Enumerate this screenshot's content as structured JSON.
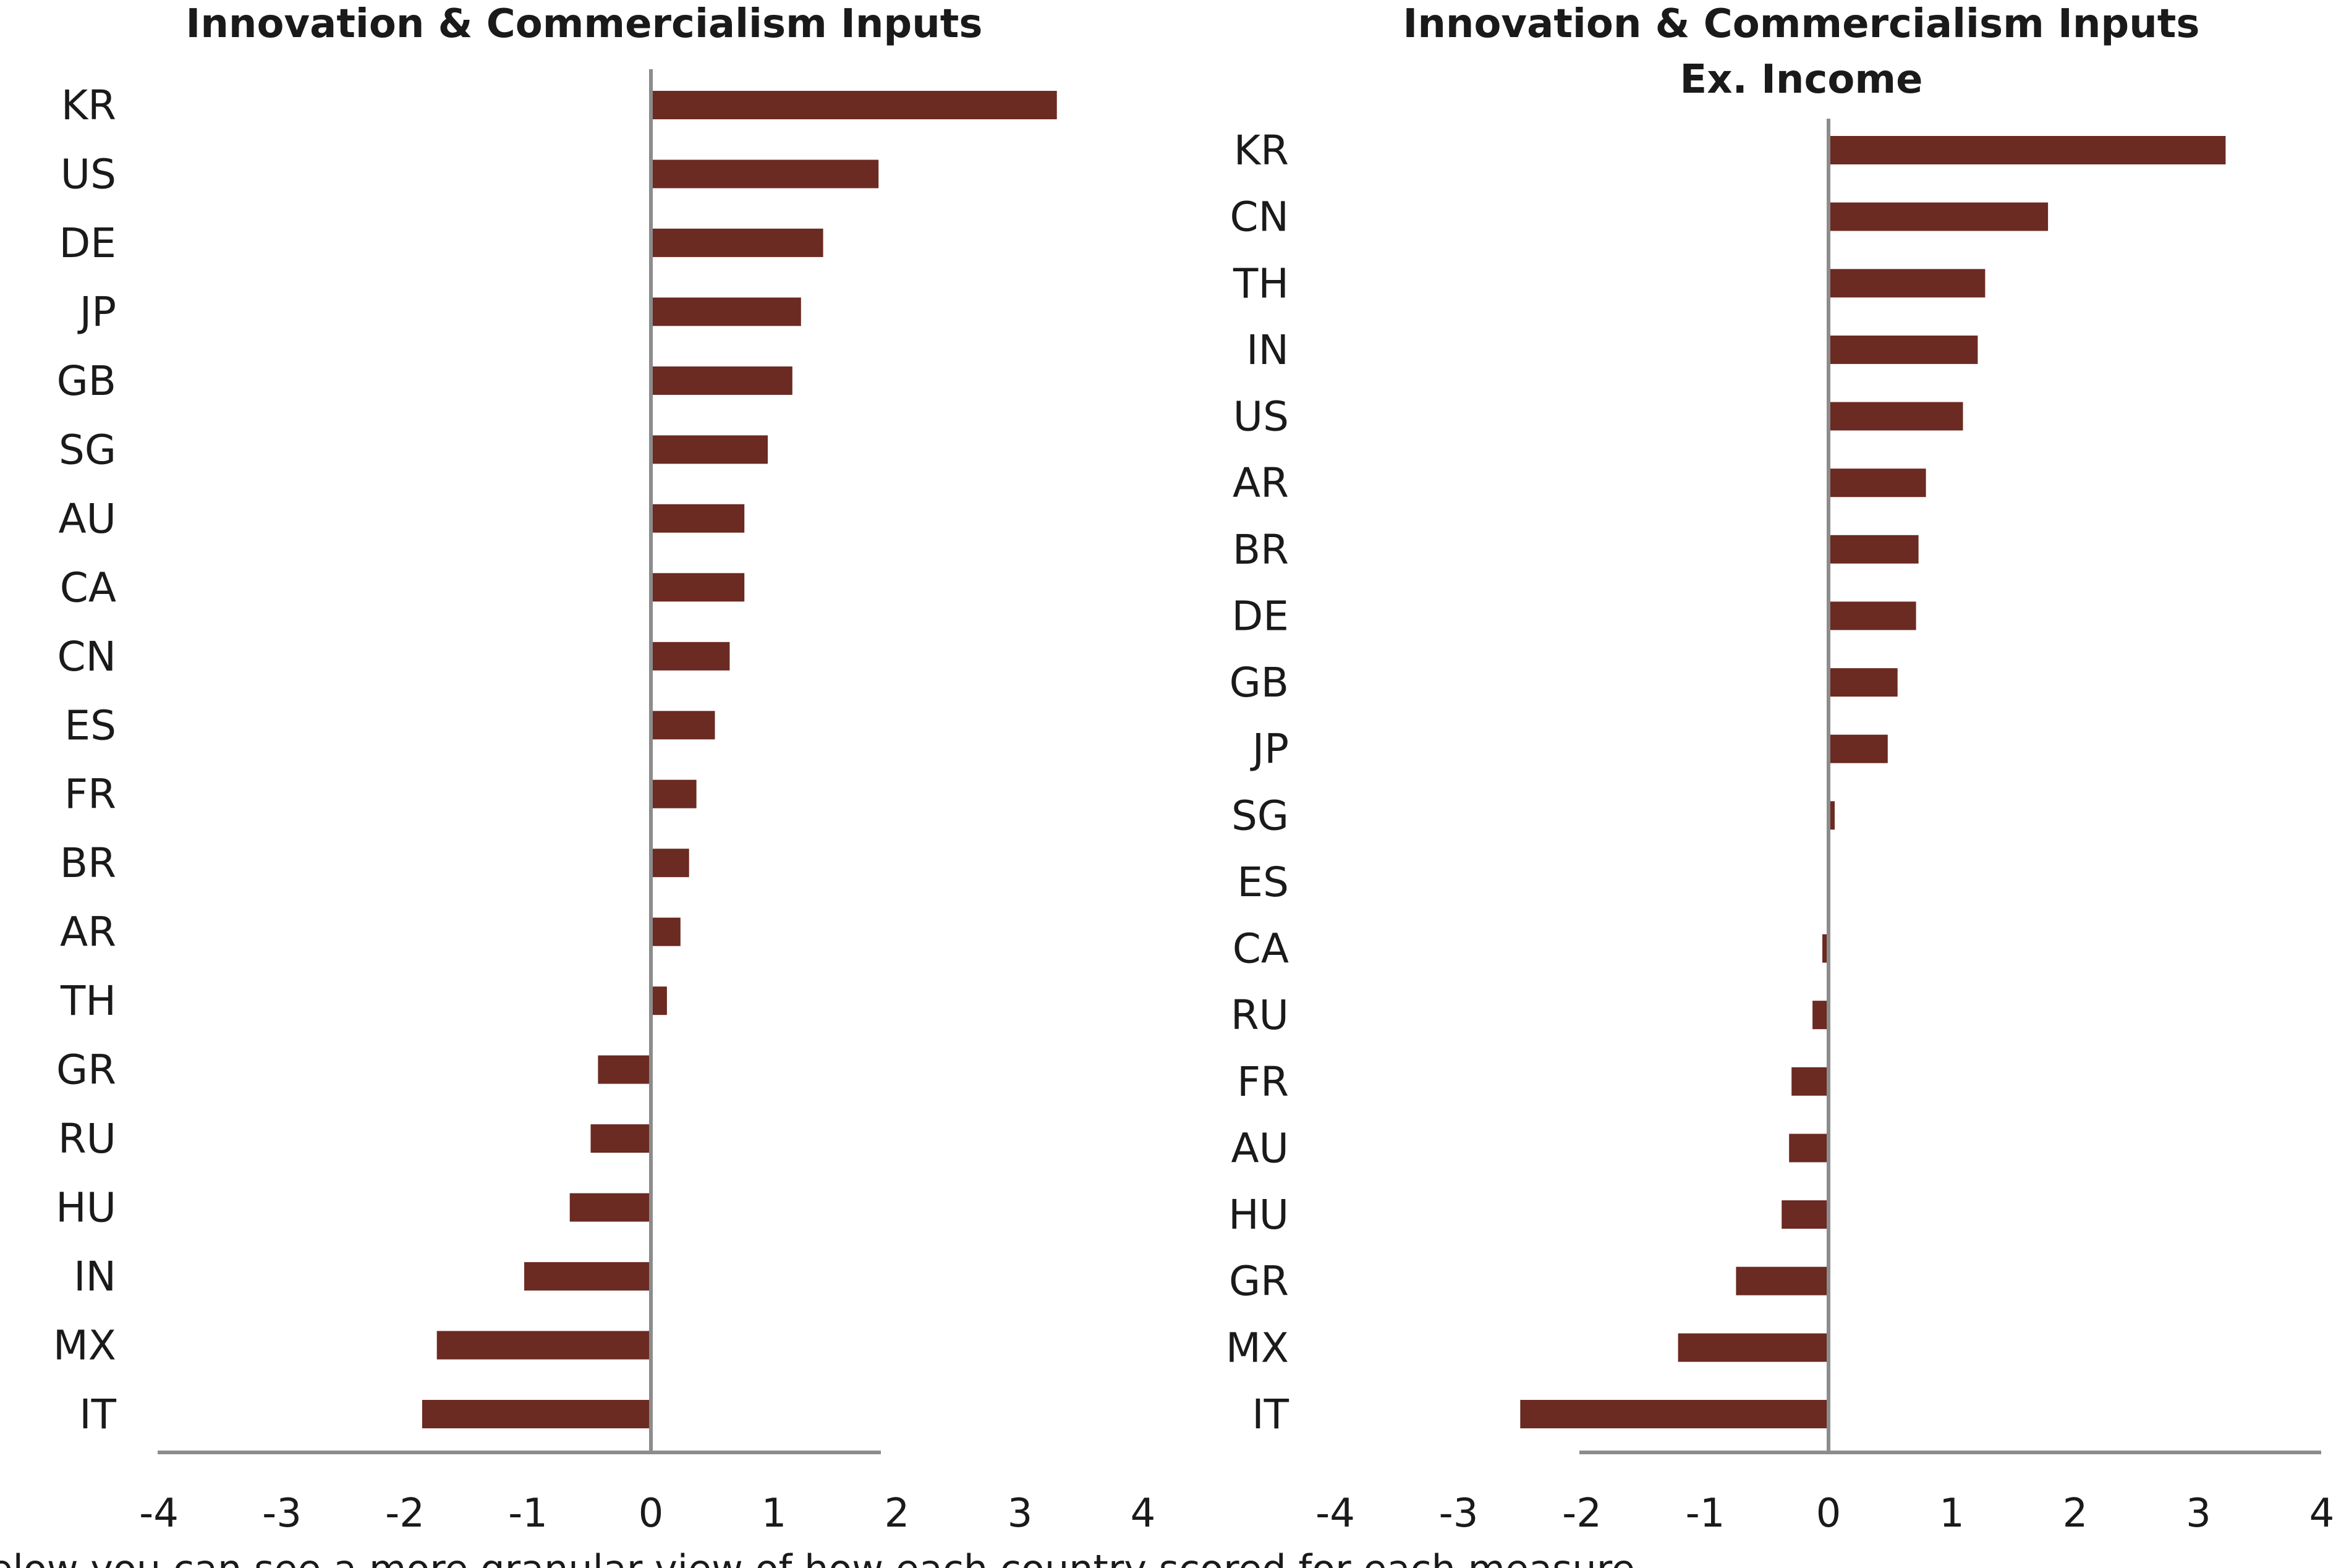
{
  "chart_data": [
    {
      "type": "bar",
      "orientation": "horizontal",
      "title": [
        "Innovation & Commercialism Inputs"
      ],
      "xlim": [
        -4,
        4
      ],
      "xticks": [
        "-4",
        "-3",
        "-2",
        "-1",
        "0",
        "1",
        "2",
        "3",
        "4"
      ],
      "categories": [
        "KR",
        "US",
        "DE",
        "JP",
        "GB",
        "SG",
        "AU",
        "CA",
        "CN",
        "ES",
        "FR",
        "BR",
        "AR",
        "TH",
        "GR",
        "RU",
        "HU",
        "IN",
        "MX",
        "IT"
      ],
      "values": [
        3.3,
        1.85,
        1.4,
        1.22,
        1.15,
        0.95,
        0.76,
        0.76,
        0.64,
        0.52,
        0.37,
        0.31,
        0.24,
        0.13,
        -0.43,
        -0.49,
        -0.66,
        -1.03,
        -1.74,
        -1.86
      ],
      "bar_color": "#6b2a22",
      "grid": false
    },
    {
      "type": "bar",
      "orientation": "horizontal",
      "title": [
        "Innovation & Commercialism Inputs",
        "Ex. Income"
      ],
      "xlim": [
        -4,
        4
      ],
      "xticks": [
        "-4",
        "-3",
        "-2",
        "-1",
        "0",
        "1",
        "2",
        "3",
        "4"
      ],
      "categories": [
        "KR",
        "CN",
        "TH",
        "IN",
        "US",
        "AR",
        "BR",
        "DE",
        "GB",
        "JP",
        "SG",
        "ES",
        "CA",
        "RU",
        "FR",
        "AU",
        "HU",
        "GR",
        "MX",
        "IT"
      ],
      "values": [
        3.22,
        1.78,
        1.27,
        1.21,
        1.09,
        0.79,
        0.73,
        0.71,
        0.56,
        0.48,
        0.05,
        0.0,
        -0.05,
        -0.13,
        -0.3,
        -0.32,
        -0.38,
        -0.75,
        -1.22,
        -2.5
      ],
      "bar_color": "#6b2a22",
      "grid": false
    }
  ],
  "footer_text": "Below you can see a more granular view of how each country scored for each measure"
}
